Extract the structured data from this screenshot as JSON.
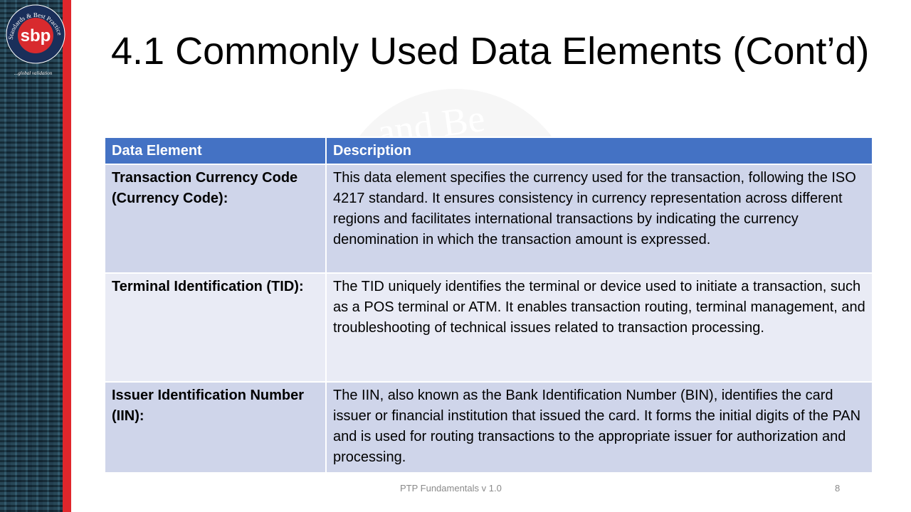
{
  "logo": {
    "text": "Standards & Best Practice",
    "letters": "sbp",
    "tagline": "...global validation"
  },
  "watermark": "and Be",
  "title": "4.1 Commonly Used Data Elements (Cont’d)",
  "table": {
    "headers": [
      "Data Element",
      "Description"
    ],
    "rows": [
      {
        "element": "Transaction Currency Code (Currency Code):",
        "description": "This data element specifies the currency used for the transaction, following the ISO 4217 standard. It ensures consistency in currency representation across different regions and facilitates international transactions by indicating the currency denomination in which the transaction amount is expressed."
      },
      {
        "element": "Terminal Identification (TID):",
        "description": "The TID uniquely identifies the terminal or device used to initiate a transaction, such as a POS terminal or ATM. It enables transaction routing, terminal management, and troubleshooting of technical issues related to transaction processing."
      },
      {
        "element": "Issuer Identification Number (IIN):",
        "description": "The IIN, also known as the Bank Identification Number (BIN), identifies the card issuer or financial institution that issued the card. It forms the initial digits of the PAN and is used for routing transactions to the appropriate issuer for authorization and processing."
      }
    ]
  },
  "footer": {
    "center": "PTP Fundamentals v 1.0",
    "page": "8"
  },
  "colors": {
    "header": "#4472c4",
    "row_odd": "#cfd5ea",
    "row_even": "#e9ebf5",
    "accent_red": "#e0262b"
  }
}
